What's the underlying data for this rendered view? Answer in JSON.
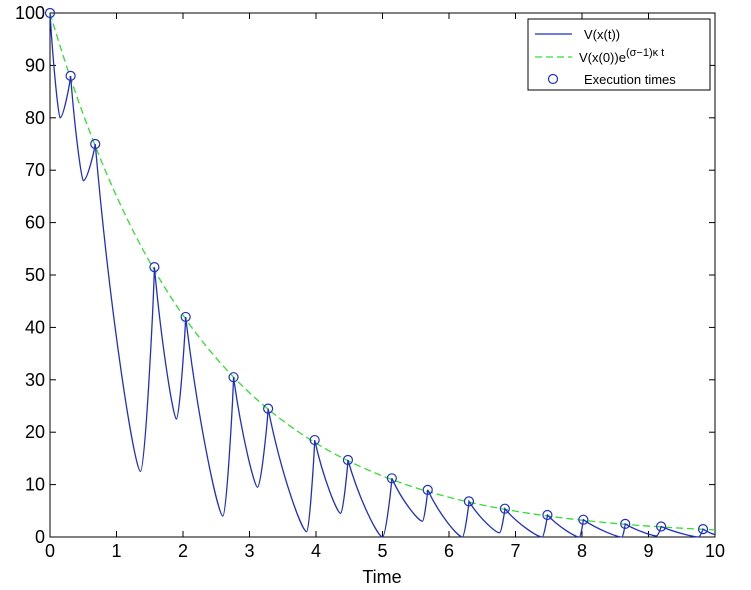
{
  "chart_data": {
    "type": "line",
    "title": "",
    "xlabel": "Time",
    "ylabel": "",
    "xlim": [
      0,
      10
    ],
    "ylim": [
      0,
      100
    ],
    "x_ticks": [
      "0",
      "1",
      "2",
      "3",
      "4",
      "5",
      "6",
      "7",
      "8",
      "9",
      "10"
    ],
    "y_ticks": [
      "0",
      "10",
      "20",
      "30",
      "40",
      "50",
      "60",
      "70",
      "80",
      "90",
      "100"
    ],
    "grid": false,
    "legend_position": "top-right",
    "colors": {
      "V": "#1f2fc4",
      "bound": "#33dd33",
      "markers": "#1f2fc4"
    },
    "legend": [
      {
        "key": "V",
        "label": "V(x(t))",
        "style": "solid-line"
      },
      {
        "key": "bound",
        "label_base": "V(x(0))e",
        "label_sup": "(σ−1)κ t",
        "style": "dashed-line"
      },
      {
        "key": "markers",
        "label": "Execution times",
        "style": "circle-marker"
      }
    ],
    "bound_curve": {
      "V0": 100,
      "rate": 0.43
    },
    "execution_times": {
      "t": [
        0,
        0.31,
        0.68,
        1.57,
        2.04,
        2.76,
        3.28,
        3.98,
        4.48,
        5.14,
        5.68,
        6.3,
        6.84,
        7.48,
        8.02,
        8.65,
        9.19,
        9.82
      ],
      "V": [
        100,
        88,
        75,
        51.5,
        42,
        30.5,
        24.5,
        18.5,
        14.7,
        11.2,
        9,
        6.8,
        5.4,
        4.2,
        3.3,
        2.5,
        2,
        1.5
      ]
    },
    "minima": {
      "t": [
        0.15,
        0.5,
        1.36,
        1.9,
        2.6,
        3.12,
        3.86,
        4.37,
        5.0,
        5.6,
        6.2,
        6.76,
        7.4,
        7.96,
        8.6,
        9.12,
        9.75,
        10.0
      ],
      "V": [
        80,
        68,
        12.5,
        22.5,
        4,
        9.5,
        1,
        4.5,
        0,
        3,
        0,
        0.8,
        0,
        0,
        0,
        0.2,
        0,
        0.5
      ]
    }
  }
}
